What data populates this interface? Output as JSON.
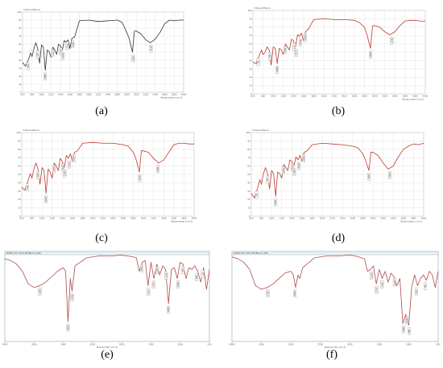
{
  "chart_data": [
    {
      "id": "a",
      "type": "line",
      "panel_label": "(a)",
      "title": "",
      "ylabel": "%Transmittance",
      "xlabel": "Wavenumber (cm-1)",
      "y_ticks": [
        "100",
        "90",
        "80",
        "70",
        "60",
        "50",
        "40",
        "30",
        "20",
        "10",
        "0"
      ],
      "x_ticks": [
        "600",
        "800",
        "1000",
        "1200",
        "1400",
        "1600",
        "1800",
        "2000",
        "2200",
        "2400",
        "2600",
        "2800",
        "3000",
        "3200",
        "3400",
        "3600",
        "3800",
        "4000"
      ],
      "xlim": [
        600,
        4000
      ],
      "ylim": [
        0,
        110
      ],
      "color": "#333333",
      "x": [
        600,
        660,
        720,
        770,
        800,
        840,
        880,
        920,
        960,
        1000,
        1040,
        1080,
        1120,
        1160,
        1200,
        1240,
        1280,
        1320,
        1360,
        1400,
        1440,
        1480,
        1520,
        1560,
        1600,
        1640,
        1700,
        1800,
        2000,
        2200,
        2400,
        2600,
        2700,
        2800,
        2850,
        2920,
        2960,
        3000,
        3100,
        3200,
        3300,
        3400,
        3500,
        3600,
        3700,
        3800,
        3900,
        4000
      ],
      "y": [
        41,
        36,
        44,
        54,
        49,
        60,
        68,
        60,
        40,
        65,
        62,
        30,
        58,
        56,
        48,
        62,
        58,
        52,
        66,
        64,
        58,
        71,
        69,
        72,
        60,
        74,
        76,
        98,
        99,
        97,
        98,
        99,
        96,
        82,
        74,
        55,
        84,
        84,
        80,
        72,
        68,
        73,
        82,
        94,
        99,
        98,
        99,
        99
      ],
      "peaks": [
        "3310",
        "2935",
        "1660",
        "1545",
        "1449",
        "1410",
        "1235",
        "1080",
        "920",
        "720"
      ]
    },
    {
      "id": "b",
      "type": "line",
      "panel_label": "(b)",
      "title": "",
      "ylabel": "%Transmittance",
      "xlabel": "Wavenumber (cm-1)",
      "y_ticks": [
        "100",
        "90",
        "80",
        "70",
        "60",
        "50",
        "40",
        "30",
        "20",
        "10",
        "0"
      ],
      "x_ticks": [
        "600",
        "800",
        "1000",
        "1200",
        "1400",
        "1600",
        "1800",
        "2000",
        "2200",
        "2400",
        "2600",
        "2800",
        "3000",
        "3200",
        "3400",
        "3600",
        "3800",
        "4000"
      ],
      "xlim": [
        600,
        4000
      ],
      "ylim": [
        0,
        110
      ],
      "color": "#c0392b",
      "x": [
        600,
        660,
        720,
        770,
        800,
        840,
        880,
        920,
        960,
        1000,
        1040,
        1080,
        1120,
        1160,
        1200,
        1240,
        1280,
        1320,
        1360,
        1400,
        1440,
        1480,
        1520,
        1560,
        1600,
        1640,
        1700,
        1800,
        2000,
        2200,
        2400,
        2600,
        2700,
        2800,
        2850,
        2920,
        2960,
        3000,
        3100,
        3200,
        3300,
        3400,
        3500,
        3600,
        3700,
        3800,
        3900,
        4000
      ],
      "y": [
        42,
        40,
        50,
        58,
        52,
        55,
        62,
        58,
        38,
        62,
        60,
        40,
        60,
        58,
        52,
        66,
        62,
        58,
        72,
        70,
        62,
        78,
        76,
        80,
        70,
        82,
        86,
        98,
        99,
        98,
        98,
        97,
        94,
        88,
        78,
        60,
        90,
        90,
        88,
        82,
        78,
        82,
        90,
        96,
        97,
        97,
        96,
        96
      ],
      "peaks": [
        "3340",
        "2922",
        "1632",
        "1540",
        "1454",
        "1417",
        "1240",
        "1080",
        "935",
        "705"
      ]
    },
    {
      "id": "c",
      "type": "line",
      "panel_label": "(c)",
      "title": "",
      "ylabel": "%Transmittance",
      "xlabel": "Wavenumber (cm-1)",
      "y_ticks": [
        "100",
        "90",
        "80",
        "70",
        "60",
        "50",
        "40",
        "30",
        "20",
        "10",
        "0"
      ],
      "x_ticks": [
        "600",
        "800",
        "1000",
        "1200",
        "1400",
        "1600",
        "1800",
        "2000",
        "2200",
        "2400",
        "2600",
        "2800",
        "3000",
        "3200",
        "3400",
        "3600",
        "3800",
        "4000"
      ],
      "xlim": [
        600,
        4000
      ],
      "ylim": [
        0,
        110
      ],
      "color": "#c0392b",
      "x": [
        600,
        660,
        720,
        770,
        800,
        840,
        880,
        920,
        960,
        1000,
        1040,
        1080,
        1120,
        1160,
        1200,
        1240,
        1280,
        1320,
        1360,
        1400,
        1440,
        1480,
        1520,
        1560,
        1600,
        1640,
        1700,
        1800,
        2000,
        2200,
        2400,
        2600,
        2700,
        2800,
        2850,
        2920,
        2960,
        3000,
        3100,
        3200,
        3300,
        3400,
        3500,
        3600,
        3700,
        3800,
        3900,
        4000
      ],
      "y": [
        38,
        34,
        46,
        56,
        50,
        62,
        70,
        62,
        42,
        64,
        60,
        30,
        62,
        58,
        50,
        70,
        66,
        60,
        76,
        72,
        64,
        80,
        76,
        82,
        72,
        84,
        86,
        96,
        97,
        96,
        96,
        94,
        92,
        84,
        76,
        58,
        86,
        86,
        84,
        76,
        70,
        74,
        84,
        94,
        96,
        96,
        95,
        95
      ],
      "peaks": [
        "3290",
        "2928",
        "1630",
        "1535",
        "1450",
        "1410",
        "1238",
        "1078",
        "920",
        "710"
      ]
    },
    {
      "id": "d",
      "type": "line",
      "panel_label": "(d)",
      "title": "",
      "ylabel": "%Transmittance",
      "xlabel": "Wavenumber (cm-1)",
      "y_ticks": [
        "100",
        "90",
        "80",
        "70",
        "60",
        "50",
        "40",
        "30",
        "20",
        "10",
        "0"
      ],
      "x_ticks": [
        "600",
        "800",
        "1000",
        "1200",
        "1400",
        "1600",
        "1800",
        "2000",
        "2200",
        "2400",
        "2600",
        "2800",
        "3000",
        "3200",
        "3400",
        "3600",
        "3800",
        "4000"
      ],
      "xlim": [
        600,
        4000
      ],
      "ylim": [
        0,
        110
      ],
      "color": "#c0392b",
      "x": [
        600,
        660,
        720,
        770,
        800,
        840,
        880,
        920,
        960,
        1000,
        1040,
        1080,
        1120,
        1160,
        1200,
        1240,
        1280,
        1320,
        1360,
        1400,
        1440,
        1480,
        1520,
        1560,
        1600,
        1640,
        1700,
        1800,
        2000,
        2200,
        2400,
        2600,
        2700,
        2800,
        2850,
        2920,
        2960,
        3000,
        3100,
        3200,
        3300,
        3400,
        3500,
        3600,
        3700,
        3800,
        3900,
        4000
      ],
      "y": [
        30,
        24,
        36,
        48,
        42,
        56,
        64,
        56,
        36,
        60,
        56,
        26,
        58,
        56,
        50,
        68,
        64,
        60,
        74,
        72,
        66,
        78,
        74,
        80,
        72,
        84,
        86,
        94,
        96,
        95,
        94,
        92,
        90,
        82,
        74,
        60,
        84,
        84,
        80,
        70,
        62,
        66,
        78,
        88,
        92,
        95,
        94,
        96
      ],
      "peaks": [
        "3335",
        "2925",
        "1632",
        "1540",
        "1449",
        "1414",
        "1238",
        "1082",
        "923",
        "705"
      ]
    },
    {
      "id": "e",
      "type": "line",
      "panel_label": "(e)",
      "title": "",
      "ylabel": "",
      "xlabel": "Wavenumber (cm-1)",
      "header": "PCMA #17 #19 #8 Blend (##)",
      "x_ticks": [
        "4000",
        "3500",
        "3000",
        "2500",
        "2000",
        "1500",
        "1000",
        "500"
      ],
      "xlim": [
        4000,
        500
      ],
      "ylim": [
        0,
        100
      ],
      "reversed_x": true,
      "color": "#b04a4a",
      "x": [
        4000,
        3900,
        3800,
        3700,
        3600,
        3500,
        3400,
        3300,
        3200,
        3100,
        3000,
        2960,
        2920,
        2880,
        2850,
        2800,
        2600,
        2400,
        2200,
        2000,
        1900,
        1800,
        1750,
        1700,
        1650,
        1600,
        1550,
        1500,
        1450,
        1400,
        1350,
        1300,
        1250,
        1200,
        1150,
        1100,
        1050,
        1000,
        950,
        900,
        850,
        800,
        750,
        700,
        650,
        600,
        550,
        500
      ],
      "y": [
        92,
        90,
        86,
        78,
        64,
        60,
        62,
        66,
        72,
        78,
        82,
        78,
        22,
        70,
        56,
        84,
        93,
        95,
        95,
        96,
        95,
        94,
        93,
        78,
        88,
        90,
        62,
        88,
        70,
        86,
        74,
        84,
        80,
        42,
        80,
        82,
        70,
        88,
        86,
        70,
        82,
        80,
        84,
        78,
        66,
        82,
        58,
        80
      ],
      "peaks": [
        "3400",
        "2920",
        "2850",
        "1654",
        "1541",
        "1454",
        "1394",
        "1238",
        "1200",
        "1036",
        "950",
        "720",
        "615"
      ]
    },
    {
      "id": "f",
      "type": "line",
      "panel_label": "(f)",
      "title": "",
      "ylabel": "",
      "xlabel": "Wavenumber (cm-1)",
      "header": "PCMA #17 #19 #8 Blend (##)",
      "x_ticks": [
        "4000",
        "3500",
        "3000",
        "2500",
        "2000",
        "1500",
        "1000",
        "500"
      ],
      "xlim": [
        4000,
        500
      ],
      "ylim": [
        0,
        100
      ],
      "reversed_x": true,
      "color": "#b04a4a",
      "x": [
        4000,
        3900,
        3800,
        3700,
        3600,
        3500,
        3400,
        3300,
        3200,
        3100,
        3000,
        2960,
        2920,
        2880,
        2850,
        2800,
        2600,
        2400,
        2200,
        2000,
        1900,
        1800,
        1750,
        1700,
        1650,
        1600,
        1550,
        1500,
        1450,
        1400,
        1350,
        1300,
        1250,
        1200,
        1150,
        1100,
        1050,
        1000,
        950,
        900,
        850,
        800,
        750,
        700,
        650,
        600,
        550,
        500
      ],
      "y": [
        94,
        92,
        88,
        80,
        62,
        58,
        60,
        64,
        70,
        76,
        78,
        74,
        60,
        74,
        70,
        82,
        93,
        95,
        95,
        96,
        95,
        93,
        92,
        78,
        80,
        84,
        64,
        80,
        70,
        78,
        66,
        76,
        72,
        62,
        70,
        20,
        30,
        18,
        60,
        74,
        62,
        70,
        74,
        68,
        78,
        74,
        60,
        78
      ],
      "peaks": [
        "3390",
        "2930",
        "1630",
        "1545",
        "1450",
        "1240",
        "1090",
        "1030",
        "990",
        "870",
        "720"
      ]
    }
  ]
}
